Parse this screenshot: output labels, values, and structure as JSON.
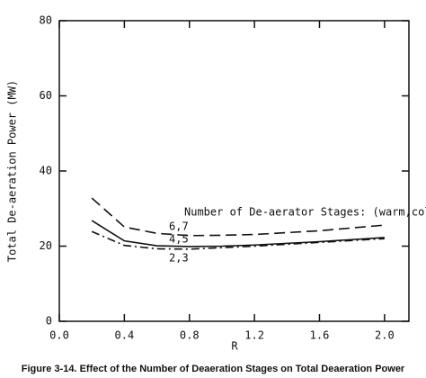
{
  "chart_data": {
    "type": "line",
    "caption": "Figure 3-14.   Effect of the Number of Deaeration Stages on Total Deaeration  Power",
    "x_label": "R",
    "y_label": "Total De-aeration Power (MW)",
    "annotation": "Number of De-aerator Stages: (warm,cold)",
    "x": [
      0.2,
      0.4,
      0.6,
      0.8,
      1.0,
      1.2,
      1.6,
      2.0
    ],
    "series": [
      {
        "name": "6,7",
        "color": "#111111",
        "dash": "12,6",
        "values": [
          32.8,
          25.1,
          23.4,
          22.8,
          22.9,
          23.1,
          24.1,
          25.6
        ]
      },
      {
        "name": "4,5",
        "color": "#111111",
        "dash": "none",
        "values": [
          26.8,
          21.4,
          20.1,
          19.9,
          20.0,
          20.3,
          21.2,
          22.3
        ]
      },
      {
        "name": "2,3",
        "color": "#111111",
        "dash": "9,4,2,4",
        "values": [
          23.9,
          20.2,
          19.3,
          19.2,
          19.6,
          20.0,
          21.0,
          22.0
        ]
      }
    ],
    "xlim": [
      0,
      2.15
    ],
    "ylim": [
      0,
      80
    ],
    "xticks": [
      {
        "value": 0,
        "label": "0.0"
      },
      0.4,
      0.8,
      1.2,
      1.6,
      {
        "value": 2,
        "label": "2.0"
      }
    ],
    "yticks": [
      0,
      20,
      40,
      60,
      80
    ],
    "grid": false
  }
}
